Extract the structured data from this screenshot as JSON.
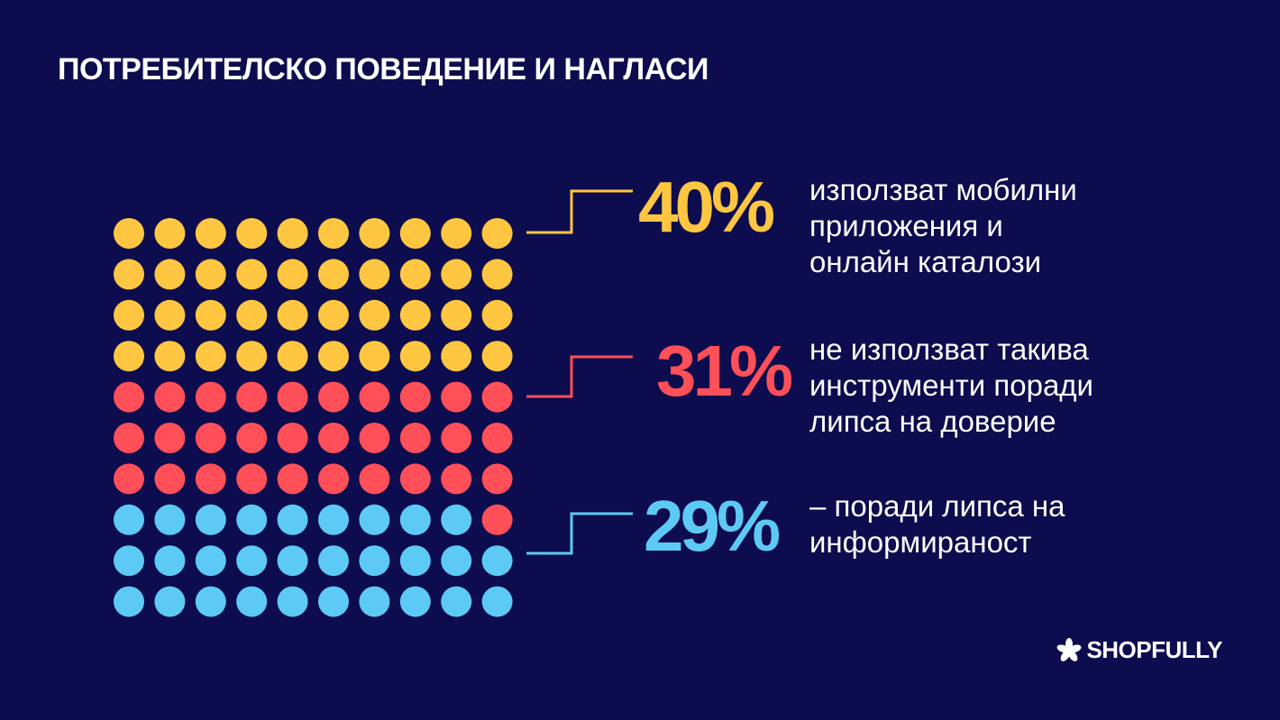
{
  "title": "ПОТРЕБИТЕЛСКО ПОВЕДЕНИЕ И НАГЛАСИ",
  "chart_data": {
    "type": "waffle",
    "grid": {
      "rows": 10,
      "cols": 10
    },
    "total": 100,
    "series": [
      {
        "value": 40,
        "label": "40%",
        "description": [
          "използват мобилни",
          "приложения и",
          "онлайн каталози"
        ],
        "color": "#ffc642"
      },
      {
        "value": 31,
        "label": "31%",
        "description": [
          "не използват такива",
          "инструменти поради",
          "липса на доверие"
        ],
        "color": "#ff4f58"
      },
      {
        "value": 29,
        "label": "29%",
        "description": [
          "– поради липса на",
          "информираност"
        ],
        "color": "#5ccaf4"
      }
    ]
  },
  "brand": {
    "name": "SHOPFULLY",
    "icon": "asterisk-logo-icon"
  }
}
